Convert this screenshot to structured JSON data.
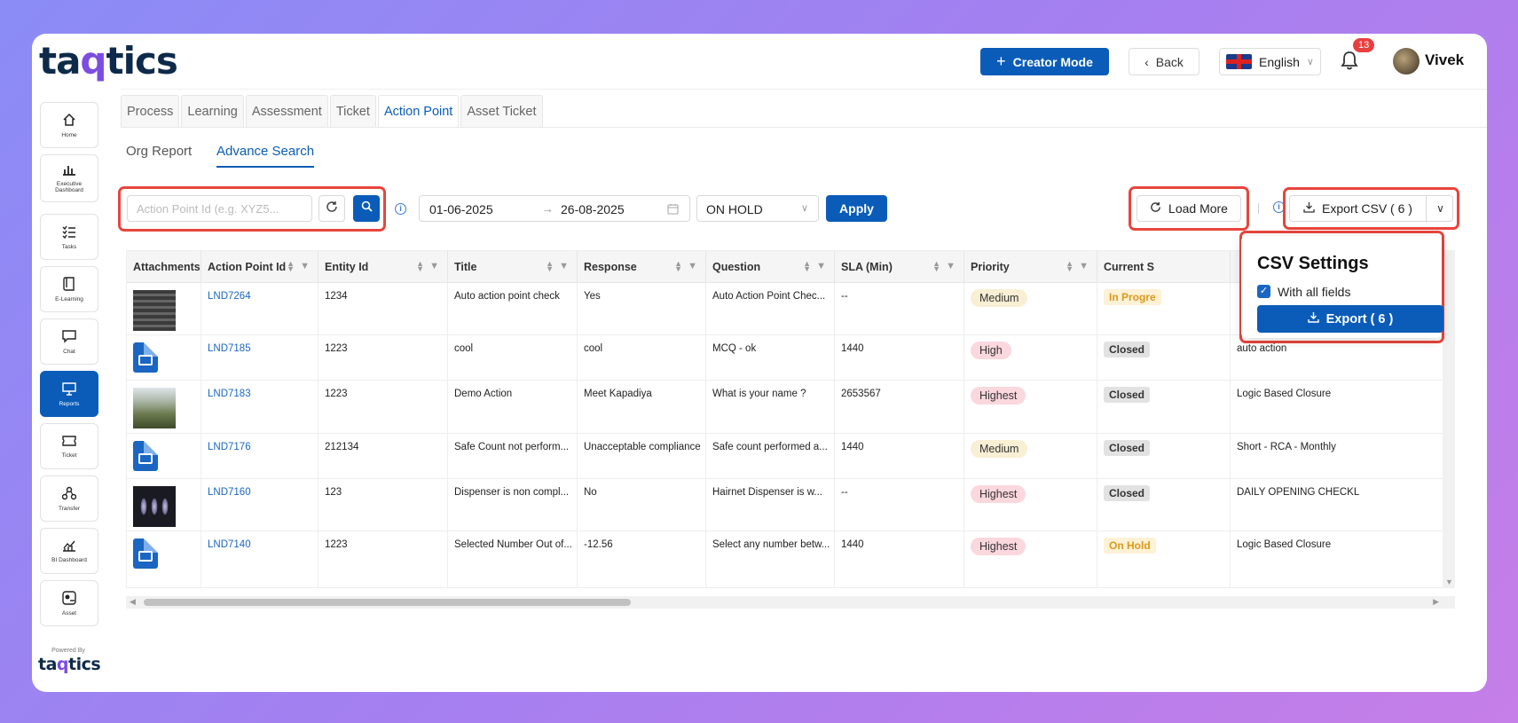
{
  "header": {
    "logo": "taqtics",
    "creator_mode": "Creator Mode",
    "back": "Back",
    "language": "English",
    "notifications": "13",
    "user": "Vivek"
  },
  "sidebar": {
    "items": [
      {
        "label": "Home",
        "icon": "home-icon"
      },
      {
        "label": "Executive Dashboard",
        "icon": "bar-chart-icon"
      },
      {
        "label": "Tasks",
        "icon": "checklist-icon"
      },
      {
        "label": "E-Learning",
        "icon": "book-icon"
      },
      {
        "label": "Chat",
        "icon": "chat-icon"
      },
      {
        "label": "Reports",
        "icon": "reports-icon"
      },
      {
        "label": "Ticket",
        "icon": "ticket-icon"
      },
      {
        "label": "Transfer",
        "icon": "transfer-icon"
      },
      {
        "label": "BI Dashboard",
        "icon": "bi-chart-icon"
      },
      {
        "label": "Asset",
        "icon": "asset-icon"
      }
    ],
    "active": "Reports",
    "powered_by": "Powered By",
    "powered_logo": "taqtics"
  },
  "tabs": [
    "Process",
    "Learning",
    "Assessment",
    "Ticket",
    "Action Point",
    "Asset Ticket"
  ],
  "active_tab": "Action Point",
  "subtabs": [
    "Org Report",
    "Advance Search"
  ],
  "active_subtab": "Advance Search",
  "filters": {
    "search_placeholder": "Action Point Id (e.g. XYZ5...",
    "date_from": "01-06-2025",
    "date_to": "26-08-2025",
    "status": "ON HOLD",
    "apply": "Apply",
    "load_more": "Load More",
    "export_csv": "Export CSV ( 6 )"
  },
  "table": {
    "columns": [
      "Attachments",
      "Action Point Id",
      "Entity Id",
      "Title",
      "Response",
      "Question",
      "SLA (Min)",
      "Priority",
      "Current S"
    ],
    "rows": [
      {
        "attachment": "photo-keyboard",
        "id": "LND7264",
        "entity": "1234",
        "title": "Auto action point check",
        "response": "Yes",
        "question": "Auto Action Point Chec...",
        "sla": "--",
        "priority": "Medium",
        "status": "In Progre",
        "extra": ""
      },
      {
        "attachment": "image-file",
        "id": "LND7185",
        "entity": "1223",
        "title": "cool",
        "response": "cool",
        "question": "MCQ - ok",
        "sla": "1440",
        "priority": "High",
        "status": "Closed",
        "extra": "auto action"
      },
      {
        "attachment": "photo-plant",
        "id": "LND7183",
        "entity": "1223",
        "title": "Demo Action",
        "response": "Meet Kapadiya",
        "question": "What is your name ?",
        "sla": "2653567",
        "priority": "Highest",
        "status": "Closed",
        "extra": "Logic Based Closure"
      },
      {
        "attachment": "image-file",
        "id": "LND7176",
        "entity": "212134",
        "title": "Safe Count not perform...",
        "response": "Unacceptable compliance",
        "question": "Safe count performed a...",
        "sla": "1440",
        "priority": "Medium",
        "status": "Closed",
        "extra": "Short - RCA - Monthly"
      },
      {
        "attachment": "photo-dark",
        "id": "LND7160",
        "entity": "123",
        "title": "Dispenser is non compl...",
        "response": "No",
        "question": "Hairnet Dispenser is w...",
        "sla": "--",
        "priority": "Highest",
        "status": "Closed",
        "extra": "DAILY OPENING CHECKL"
      },
      {
        "attachment": "image-file",
        "id": "LND7140",
        "entity": "1223",
        "title": "Selected Number Out of...",
        "response": "-12.56",
        "question": "Select any number betw...",
        "sla": "1440",
        "priority": "Highest",
        "status": "On Hold",
        "extra": "Logic Based Closure"
      }
    ]
  },
  "csv_popup": {
    "title": "CSV Settings",
    "checkbox_label": "With all fields",
    "checked": true,
    "export_button": "Export ( 6 )"
  },
  "colors": {
    "primary": "#0a5cb8",
    "highlight": "#e8453c",
    "medium": "#f8efd4",
    "high": "#fbd7de",
    "closed": "#e2e2e2",
    "onhold": "#fdf1d6"
  }
}
